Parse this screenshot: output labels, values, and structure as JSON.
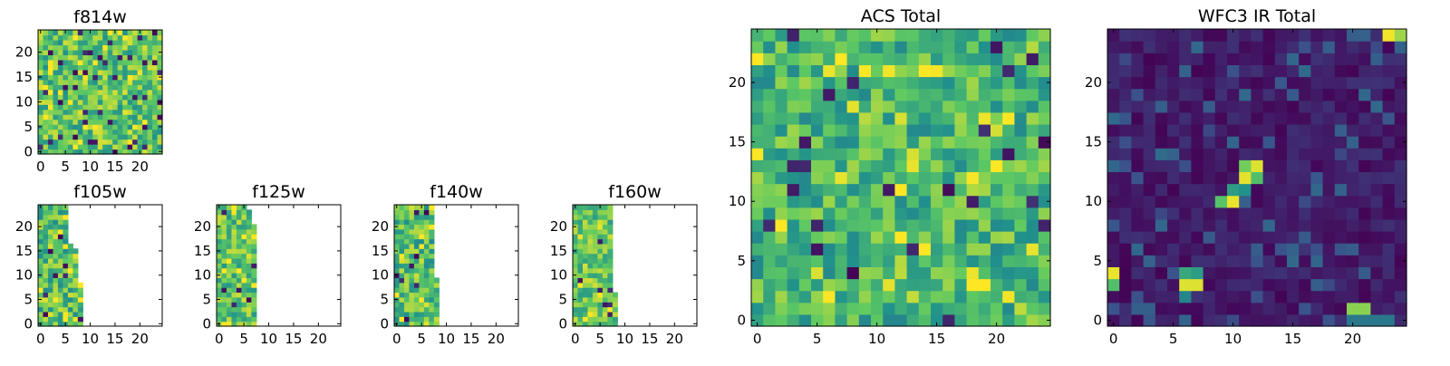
{
  "figure": {
    "colormap": "viridis",
    "colormap_stops": [
      "#440154",
      "#3b528b",
      "#21918c",
      "#5ec962",
      "#fde725"
    ]
  },
  "chart_data": [
    {
      "type": "heatmap",
      "title": "f814w",
      "grid": [
        25,
        25
      ],
      "xticks": [
        0,
        5,
        10,
        15,
        20
      ],
      "yticks": [
        0,
        5,
        10,
        15,
        20
      ],
      "xlim": [
        -0.5,
        24.5
      ],
      "ylim": [
        -0.5,
        24.5
      ],
      "coverage": "full",
      "value_distribution": "noise, mostly green-yellow with scattered dark pixels",
      "seed": 17,
      "base": 0.72,
      "spread": 0.22,
      "dark_fraction": 0.05
    },
    {
      "type": "heatmap",
      "title": "f105w",
      "grid": [
        25,
        25
      ],
      "xticks": [
        0,
        5,
        10,
        15,
        20
      ],
      "yticks": [
        0,
        5,
        10,
        15,
        20
      ],
      "xlim": [
        -0.5,
        24.5
      ],
      "ylim": [
        -0.5,
        24.5
      ],
      "coverage_column_limits": [
        [
          0,
          8,
          8
        ],
        [
          9,
          15,
          7
        ],
        [
          16,
          16,
          6
        ],
        [
          17,
          24,
          5
        ]
      ],
      "seed": 23,
      "base": 0.7,
      "spread": 0.22,
      "dark_fraction": 0.04
    },
    {
      "type": "heatmap",
      "title": "f125w",
      "grid": [
        25,
        25
      ],
      "xticks": [
        0,
        5,
        10,
        15,
        20
      ],
      "yticks": [
        0,
        5,
        10,
        15,
        20
      ],
      "xlim": [
        -0.5,
        24.5
      ],
      "ylim": [
        -0.5,
        24.5
      ],
      "coverage_column_limits": [
        [
          0,
          20,
          7
        ],
        [
          21,
          23,
          6
        ],
        [
          24,
          24,
          5
        ]
      ],
      "seed": 31,
      "base": 0.72,
      "spread": 0.2,
      "dark_fraction": 0.03
    },
    {
      "type": "heatmap",
      "title": "f140w",
      "grid": [
        25,
        25
      ],
      "xticks": [
        0,
        5,
        10,
        15,
        20
      ],
      "yticks": [
        0,
        5,
        10,
        15,
        20
      ],
      "xlim": [
        -0.5,
        24.5
      ],
      "ylim": [
        -0.5,
        24.5
      ],
      "coverage_column_limits": [
        [
          0,
          9,
          8
        ],
        [
          10,
          24,
          7
        ]
      ],
      "seed": 41,
      "base": 0.7,
      "spread": 0.22,
      "dark_fraction": 0.04
    },
    {
      "type": "heatmap",
      "title": "f160w",
      "grid": [
        25,
        25
      ],
      "xticks": [
        0,
        5,
        10,
        15,
        20
      ],
      "yticks": [
        0,
        5,
        10,
        15,
        20
      ],
      "xlim": [
        -0.5,
        24.5
      ],
      "ylim": [
        -0.5,
        24.5
      ],
      "coverage_column_limits": [
        [
          0,
          6,
          8
        ],
        [
          7,
          24,
          7
        ]
      ],
      "seed": 53,
      "base": 0.74,
      "spread": 0.2,
      "dark_fraction": 0.03
    },
    {
      "type": "heatmap",
      "title": "ACS Total",
      "grid": [
        25,
        25
      ],
      "xticks": [
        0,
        5,
        10,
        15,
        20
      ],
      "yticks": [
        0,
        5,
        10,
        15,
        20
      ],
      "xlim": [
        -0.5,
        24.5
      ],
      "ylim": [
        -0.5,
        24.5
      ],
      "coverage": "full",
      "value_distribution": "noise, mostly green with scattered dark pixels",
      "seed": 67,
      "base": 0.66,
      "spread": 0.2,
      "dark_fraction": 0.025
    },
    {
      "type": "heatmap",
      "title": "WFC3 IR Total",
      "grid": [
        25,
        25
      ],
      "xticks": [
        0,
        5,
        10,
        15,
        20
      ],
      "yticks": [
        0,
        5,
        10,
        15,
        20
      ],
      "xlim": [
        -0.5,
        24.5
      ],
      "ylim": [
        -0.5,
        24.5
      ],
      "coverage": "full",
      "value_distribution": "low dark-blue background with a few bright sources",
      "seed": 79,
      "base": 0.08,
      "spread": 0.07,
      "bright_pixels": [
        {
          "x": 23,
          "y": 24,
          "v": 0.98
        },
        {
          "x": 24,
          "y": 24,
          "v": 0.85
        },
        {
          "x": 11,
          "y": 13,
          "v": 0.78
        },
        {
          "x": 12,
          "y": 13,
          "v": 0.95
        },
        {
          "x": 11,
          "y": 12,
          "v": 0.96
        },
        {
          "x": 12,
          "y": 12,
          "v": 0.7
        },
        {
          "x": 10,
          "y": 11,
          "v": 0.55
        },
        {
          "x": 11,
          "y": 11,
          "v": 0.5
        },
        {
          "x": 9,
          "y": 10,
          "v": 0.72
        },
        {
          "x": 10,
          "y": 10,
          "v": 0.97
        },
        {
          "x": 0,
          "y": 4,
          "v": 0.97
        },
        {
          "x": 0,
          "y": 3,
          "v": 0.7
        },
        {
          "x": 6,
          "y": 3,
          "v": 0.95
        },
        {
          "x": 7,
          "y": 3,
          "v": 0.95
        },
        {
          "x": 6,
          "y": 4,
          "v": 0.6
        },
        {
          "x": 7,
          "y": 4,
          "v": 0.55
        },
        {
          "x": 6,
          "y": 2,
          "v": 0.45
        },
        {
          "x": 20,
          "y": 1,
          "v": 0.82
        },
        {
          "x": 21,
          "y": 1,
          "v": 0.82
        },
        {
          "x": 20,
          "y": 0,
          "v": 0.4
        },
        {
          "x": 21,
          "y": 0,
          "v": 0.4
        },
        {
          "x": 22,
          "y": 0,
          "v": 0.4
        },
        {
          "x": 23,
          "y": 0,
          "v": 0.4
        }
      ]
    }
  ]
}
